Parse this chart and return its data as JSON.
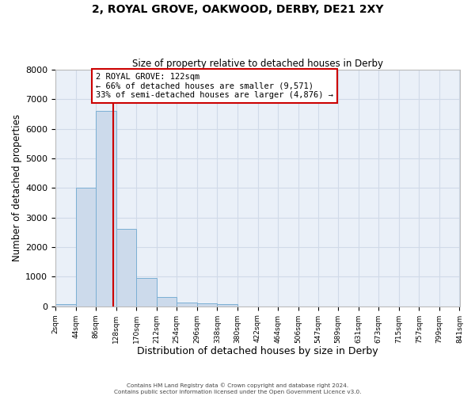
{
  "title_line1": "2, ROYAL GROVE, OAKWOOD, DERBY, DE21 2XY",
  "title_line2": "Size of property relative to detached houses in Derby",
  "xlabel": "Distribution of detached houses by size in Derby",
  "ylabel": "Number of detached properties",
  "bin_edges": [
    2,
    44,
    86,
    128,
    170,
    212,
    254,
    296,
    338,
    380,
    422,
    464,
    506,
    547,
    589,
    631,
    673,
    715,
    757,
    799,
    841
  ],
  "bar_heights": [
    60,
    4000,
    6600,
    2620,
    960,
    320,
    130,
    90,
    60,
    0,
    0,
    0,
    0,
    0,
    0,
    0,
    0,
    0,
    0,
    0
  ],
  "bar_color": "#ccdaeb",
  "bar_edgecolor": "#7bafd4",
  "property_size": 122,
  "vline_color": "#cc0000",
  "annotation_text": "2 ROYAL GROVE: 122sqm\n← 66% of detached houses are smaller (9,571)\n33% of semi-detached houses are larger (4,876) →",
  "annotation_box_edgecolor": "#cc0000",
  "ylim": [
    0,
    8000
  ],
  "yticks": [
    0,
    1000,
    2000,
    3000,
    4000,
    5000,
    6000,
    7000,
    8000
  ],
  "grid_color": "#d0dae8",
  "background_color": "#eaf0f8",
  "footer_line1": "Contains HM Land Registry data © Crown copyright and database right 2024.",
  "footer_line2": "Contains public sector information licensed under the Open Government Licence v3.0."
}
